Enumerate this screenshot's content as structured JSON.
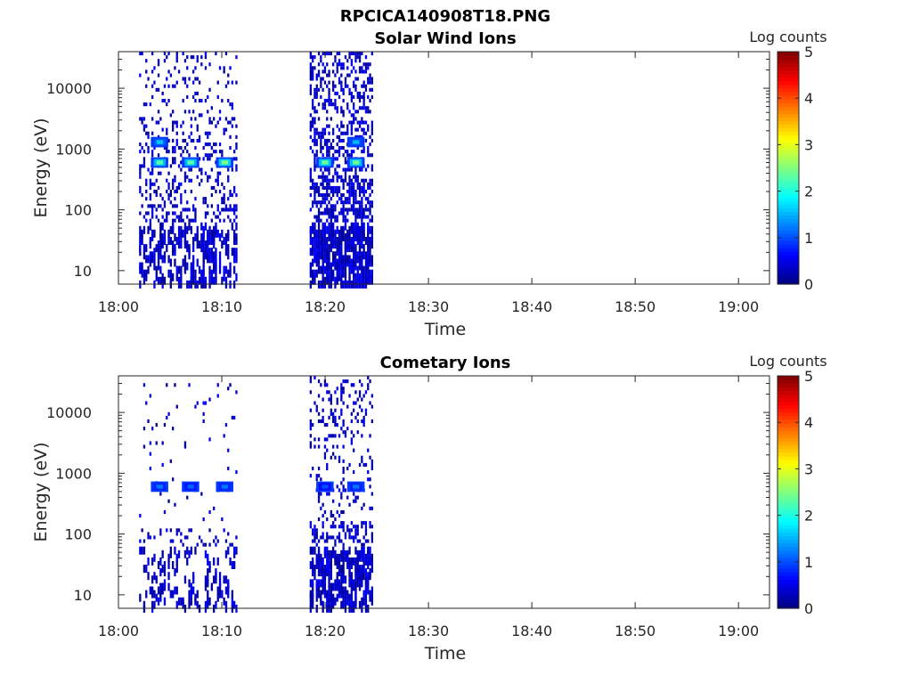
{
  "figure": {
    "title": "RPCICA140908T18.PNG"
  },
  "chart_data": [
    {
      "type": "heatmap",
      "title": "Solar Wind Ions",
      "xlabel": "Time",
      "ylabel": "Energy (eV)",
      "x_ticks": [
        "18:00",
        "18:10",
        "18:20",
        "18:30",
        "18:40",
        "18:50",
        "19:00"
      ],
      "y_ticks": [
        "10",
        "100",
        "1000",
        "10000"
      ],
      "y_scale": "log",
      "ylim": [
        6,
        40000
      ],
      "colorbar": {
        "label": "Log counts",
        "ticks": [
          "0",
          "1",
          "2",
          "3",
          "4",
          "5"
        ],
        "range": [
          0,
          5
        ],
        "colormap": "jet"
      },
      "data_bursts": [
        {
          "time_start": "18:02",
          "time_end": "18:11.5",
          "peaks": [
            {
              "time": "18:04",
              "energy_eV": 600,
              "log_counts": 2.3
            },
            {
              "time": "18:07",
              "energy_eV": 600,
              "log_counts": 2.3
            },
            {
              "time": "18:10.3",
              "energy_eV": 600,
              "log_counts": 2.5
            },
            {
              "time": "18:04",
              "energy_eV": 1300,
              "log_counts": 1.6
            }
          ]
        },
        {
          "time_start": "18:18.5",
          "time_end": "18:24.5",
          "peaks": [
            {
              "time": "18:20",
              "energy_eV": 600,
              "log_counts": 2.4
            },
            {
              "time": "18:23",
              "energy_eV": 600,
              "log_counts": 2.4
            },
            {
              "time": "18:23",
              "energy_eV": 1300,
              "log_counts": 1.5
            }
          ]
        }
      ]
    },
    {
      "type": "heatmap",
      "title": "Cometary Ions",
      "xlabel": "Time",
      "ylabel": "Energy (eV)",
      "x_ticks": [
        "18:00",
        "18:10",
        "18:20",
        "18:30",
        "18:40",
        "18:50",
        "19:00"
      ],
      "y_ticks": [
        "10",
        "100",
        "1000",
        "10000"
      ],
      "y_scale": "log",
      "ylim": [
        6,
        40000
      ],
      "colorbar": {
        "label": "Log counts",
        "ticks": [
          "0",
          "1",
          "2",
          "3",
          "4",
          "5"
        ],
        "range": [
          0,
          5
        ],
        "colormap": "jet"
      },
      "data_bursts": [
        {
          "time_start": "18:02",
          "time_end": "18:11.5",
          "peaks": [
            {
              "time": "18:04",
              "energy_eV": 600,
              "log_counts": 1.2
            },
            {
              "time": "18:07",
              "energy_eV": 600,
              "log_counts": 1.1
            },
            {
              "time": "18:10.3",
              "energy_eV": 600,
              "log_counts": 1.2
            }
          ]
        },
        {
          "time_start": "18:18.5",
          "time_end": "18:24.5",
          "peaks": [
            {
              "time": "18:20",
              "energy_eV": 600,
              "log_counts": 1.0
            },
            {
              "time": "18:23",
              "energy_eV": 600,
              "log_counts": 1.2
            }
          ]
        }
      ]
    }
  ]
}
